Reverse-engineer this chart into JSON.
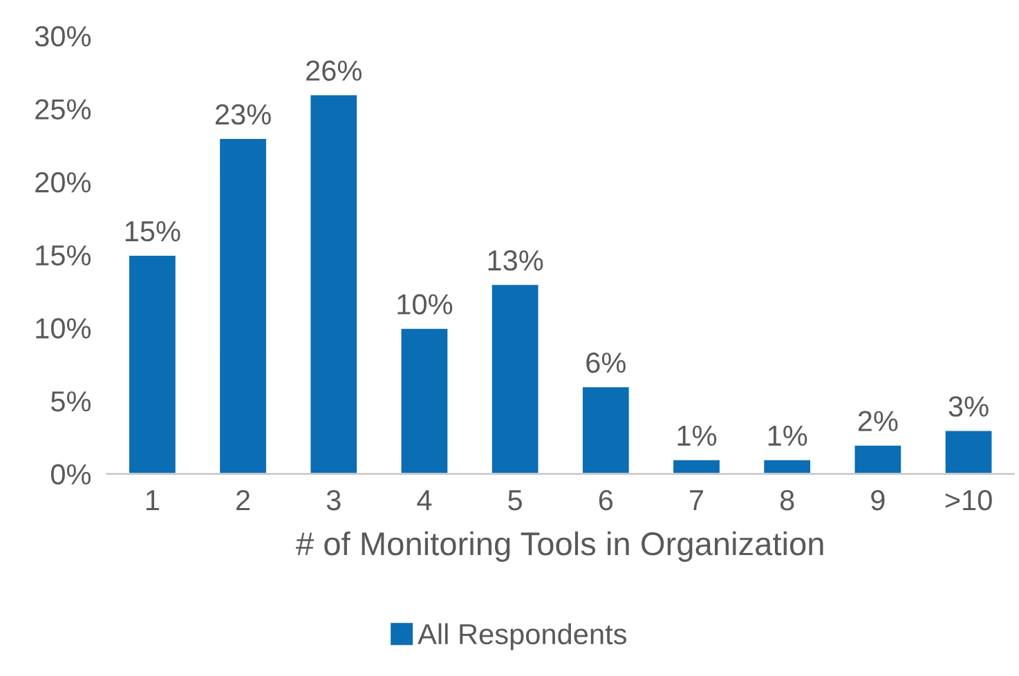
{
  "chart_data": {
    "type": "bar",
    "xlabel": "# of Monitoring Tools in Organization",
    "categories": [
      "1",
      "2",
      "3",
      "4",
      "5",
      "6",
      "7",
      "8",
      "9",
      ">10"
    ],
    "series": [
      {
        "name": "All Respondents",
        "color": "#0b6db3",
        "values": [
          15,
          23,
          26,
          10,
          13,
          6,
          1,
          1,
          2,
          3
        ],
        "value_labels": [
          "15%",
          "23%",
          "26%",
          "10%",
          "13%",
          "6%",
          "1%",
          "1%",
          "2%",
          "3%"
        ]
      }
    ],
    "ylim": [
      0,
      30
    ],
    "yticks": [
      {
        "value": 0,
        "label": "0%"
      },
      {
        "value": 5,
        "label": "5%"
      },
      {
        "value": 10,
        "label": "10%"
      },
      {
        "value": 15,
        "label": "15%"
      },
      {
        "value": 20,
        "label": "20%"
      },
      {
        "value": 25,
        "label": "25%"
      },
      {
        "value": 30,
        "label": "30%"
      }
    ],
    "grid": false,
    "legend": "bottom"
  }
}
